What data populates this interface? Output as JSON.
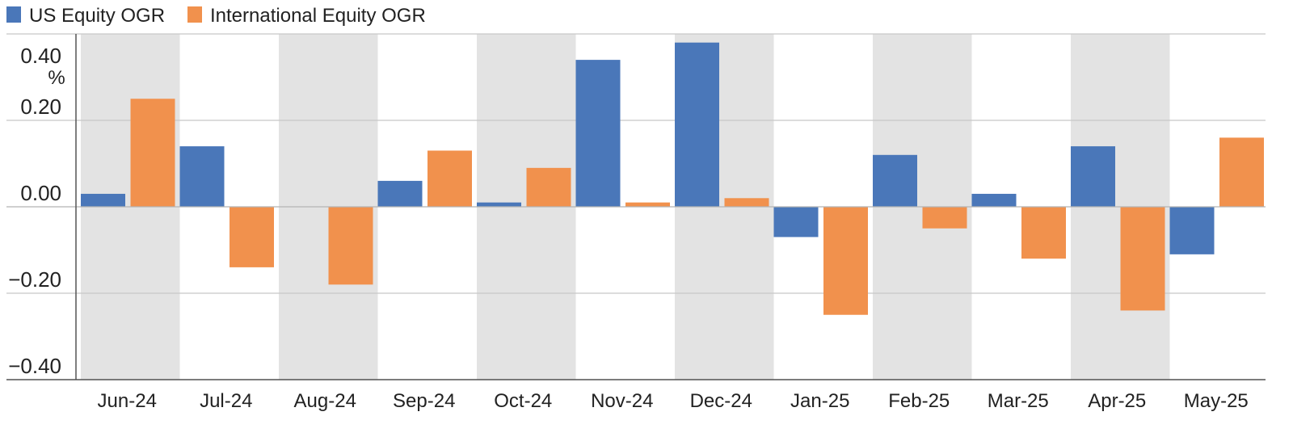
{
  "chart_data": {
    "type": "bar",
    "title": "",
    "xlabel": "",
    "ylabel": "",
    "unit": "%",
    "categories": [
      "Jun-24",
      "Jul-24",
      "Aug-24",
      "Sep-24",
      "Oct-24",
      "Nov-24",
      "Dec-24",
      "Jan-25",
      "Feb-25",
      "Mar-25",
      "Apr-25",
      "May-25"
    ],
    "series": [
      {
        "name": "US Equity OGR",
        "color": "#4a77b9",
        "values": [
          0.03,
          0.14,
          0.0,
          0.06,
          0.01,
          0.34,
          0.38,
          -0.07,
          0.12,
          0.03,
          0.14,
          -0.11
        ]
      },
      {
        "name": "International Equity OGR",
        "color": "#f1914d",
        "values": [
          0.25,
          -0.14,
          -0.18,
          0.13,
          0.09,
          0.01,
          0.02,
          -0.25,
          -0.05,
          -0.12,
          -0.24,
          0.16
        ]
      }
    ],
    "ylim": [
      -0.4,
      0.4
    ],
    "yticks": [
      "0.40",
      "0.20",
      "0.00",
      "−0.20",
      "−0.40"
    ],
    "ytick_values": [
      0.4,
      0.2,
      0.0,
      -0.2,
      -0.4
    ],
    "grid": true,
    "legend": "top-left",
    "band_color": "#e3e3e3"
  }
}
